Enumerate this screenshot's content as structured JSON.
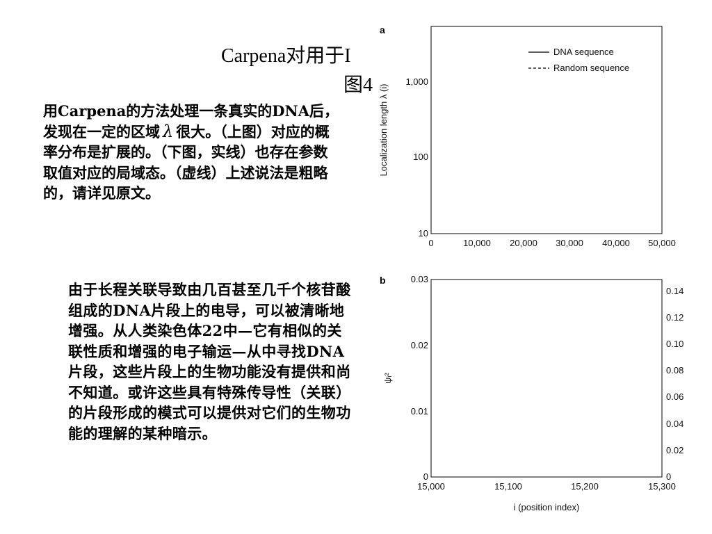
{
  "slide": {
    "title_line1": "Carpena对用于I",
    "title_line2": "图4"
  },
  "para1": {
    "pre_lambda": "用Carpena的方法处理一条真实的DNA后，发现在一定的区域",
    "lambda_symbol": "λ",
    "post_lambda": "很大。（上图）对应的概率分布是扩展的。（下图，实线）也存在参数取值对应的局域态。（虚线）上述说法是粗略的，请详见原文。"
  },
  "para2": {
    "text": "由于长程关联导致由几百甚至几千个核苷酸组成的DNA片段上的电导，可以被清晰地增强。从人类染色体22中—它有相似的关联性质和增强的电子输运—从中寻找DNA片段，这些片段上的生物功能没有提供和尚不知道。或许这些具有特殊传导性（关联）的片段形成的模式可以提供对它们的生物功能的理解的某种暗示。"
  },
  "figure": {
    "panel_a": {
      "label": "a",
      "ylabel": "Localization length λ (i)",
      "yticks": [
        "1,000",
        "100",
        "10"
      ],
      "xticks": [
        "0",
        "10,000",
        "20,000",
        "30,000",
        "40,000",
        "50,000"
      ],
      "legend": [
        "DNA sequence",
        "Random sequence"
      ]
    },
    "panel_b": {
      "label": "b",
      "ylabel": "ψᵢ²",
      "xlabel": "i (position index)",
      "yticks_left": [
        "0.03",
        "0.02",
        "0.01",
        "0"
      ],
      "yticks_right": [
        "0.14",
        "0.12",
        "0.10",
        "0.08",
        "0.06",
        "0.04",
        "0.02",
        "0"
      ],
      "xticks": [
        "15,000",
        "15,100",
        "15,200",
        "15,300"
      ]
    }
  }
}
